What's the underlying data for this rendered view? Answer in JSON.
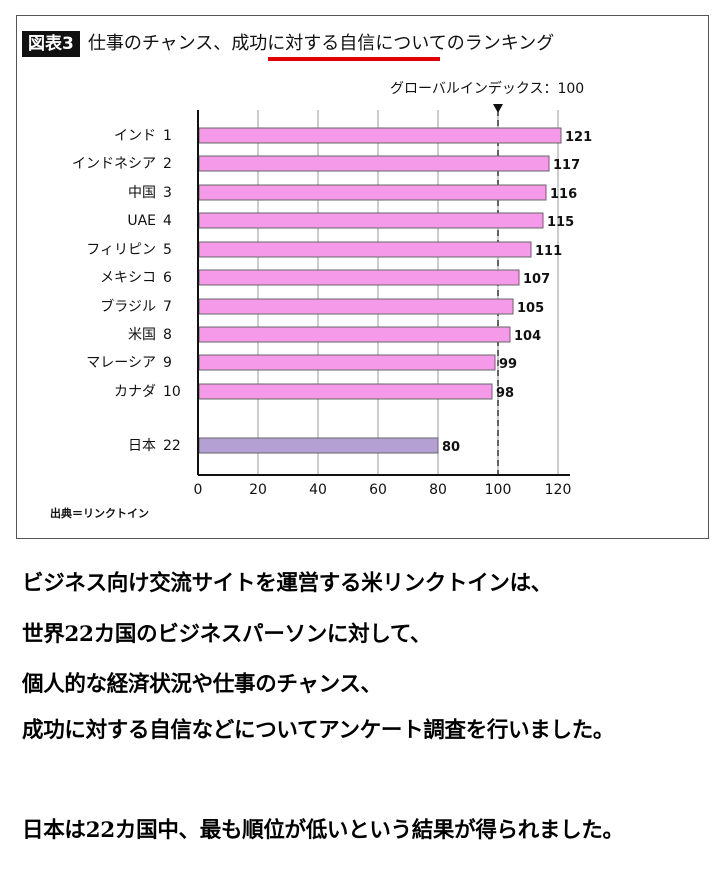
{
  "figure": {
    "label": "図表3",
    "title_prefix": "仕事のチャンス、",
    "title_emphasis": "成功に対する自信",
    "title_suffix": "についてのランキング",
    "source": "出典＝リンクトイン",
    "accent_color": "#e00000"
  },
  "chart_data": {
    "type": "bar",
    "orientation": "horizontal",
    "categories": [
      "インド",
      "インドネシア",
      "中国",
      "UAE",
      "フィリピン",
      "メキシコ",
      "ブラジル",
      "米国",
      "マレーシア",
      "カナダ",
      "日本"
    ],
    "ranks": [
      "1",
      "2",
      "3",
      "4",
      "5",
      "6",
      "7",
      "8",
      "9",
      "10",
      "22"
    ],
    "values": [
      121,
      117,
      116,
      115,
      111,
      107,
      105,
      104,
      99,
      98,
      80
    ],
    "value_labels": [
      "121",
      "117",
      "116",
      "115",
      "111",
      "107",
      "105",
      "104",
      "99",
      "98",
      "80"
    ],
    "bar_colors": [
      "#f49ae8",
      "#f49ae8",
      "#f49ae8",
      "#f49ae8",
      "#f49ae8",
      "#f49ae8",
      "#f49ae8",
      "#f49ae8",
      "#f49ae8",
      "#f49ae8",
      "#b4a0d2"
    ],
    "bar_stroke": "#666666",
    "xlim": [
      0,
      120
    ],
    "xticks": [
      0,
      20,
      40,
      60,
      80,
      100,
      120
    ],
    "xtick_labels": [
      "0",
      "20",
      "40",
      "60",
      "80",
      "100",
      "120"
    ],
    "reference_line": {
      "value": 100,
      "label": "グローバルインデックス：100"
    },
    "grid": true,
    "legend": false
  },
  "text_block": {
    "lines": [
      "ビジネス向け交流サイトを運営する米リンクトインは、",
      "世界22カ国のビジネスパーソンに対して、",
      "個人的な経済状況や仕事のチャンス、",
      "成功に対する自信などについてアンケート調査を行いました。",
      "日本は22カ国中、最も順位が低いという結果が得られました。"
    ]
  }
}
